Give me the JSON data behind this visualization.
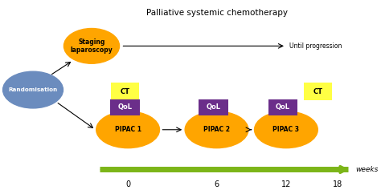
{
  "title": "Palliative systemic chemotherapy",
  "orange_color": "#FFA500",
  "blue_color": "#6B8CBE",
  "purple_color": "#6B2E8A",
  "yellow_color": "#FFFF44",
  "green_color": "#7CB518",
  "pipac_labels": [
    "PIPAC 1",
    "PIPAC 2",
    "PIPAC 3"
  ],
  "weeks_ticks": [
    "0",
    "6",
    "12",
    "18"
  ],
  "fig_w": 4.74,
  "fig_h": 2.42,
  "dpi": 100
}
